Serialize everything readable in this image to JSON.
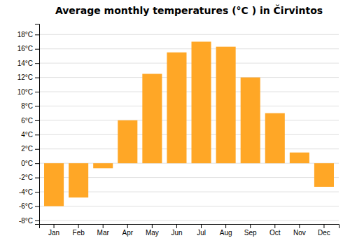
{
  "chart_data": {
    "type": "bar",
    "title": "Average monthly temperatures (°C ) in Čirvintos",
    "categories": [
      "Jan",
      "Feb",
      "Mar",
      "Apr",
      "May",
      "Jun",
      "Jul",
      "Aug",
      "Sep",
      "Oct",
      "Nov",
      "Dec"
    ],
    "values": [
      -6.0,
      -4.8,
      -0.7,
      6.0,
      12.5,
      15.5,
      17.0,
      16.3,
      12.0,
      7.0,
      1.5,
      -3.3
    ],
    "color": "#FFA726",
    "ylim": [
      -8.5,
      19.5
    ],
    "yticks": [
      {
        "value": -8,
        "label": "-8°C"
      },
      {
        "value": -6,
        "label": "-6°C"
      },
      {
        "value": -4,
        "label": "-4°C"
      },
      {
        "value": -2,
        "label": "-2°C"
      },
      {
        "value": 0,
        "label": "0°C"
      },
      {
        "value": 2,
        "label": "2°C"
      },
      {
        "value": 4,
        "label": "4°C"
      },
      {
        "value": 6,
        "label": "6°C"
      },
      {
        "value": 8,
        "label": "8°C"
      },
      {
        "value": 10,
        "label": "10°C"
      },
      {
        "value": 12,
        "label": "12°C"
      },
      {
        "value": 14,
        "label": "14°C"
      },
      {
        "value": 16,
        "label": "16°C"
      },
      {
        "value": 18,
        "label": "18°C"
      }
    ],
    "grid": true
  }
}
